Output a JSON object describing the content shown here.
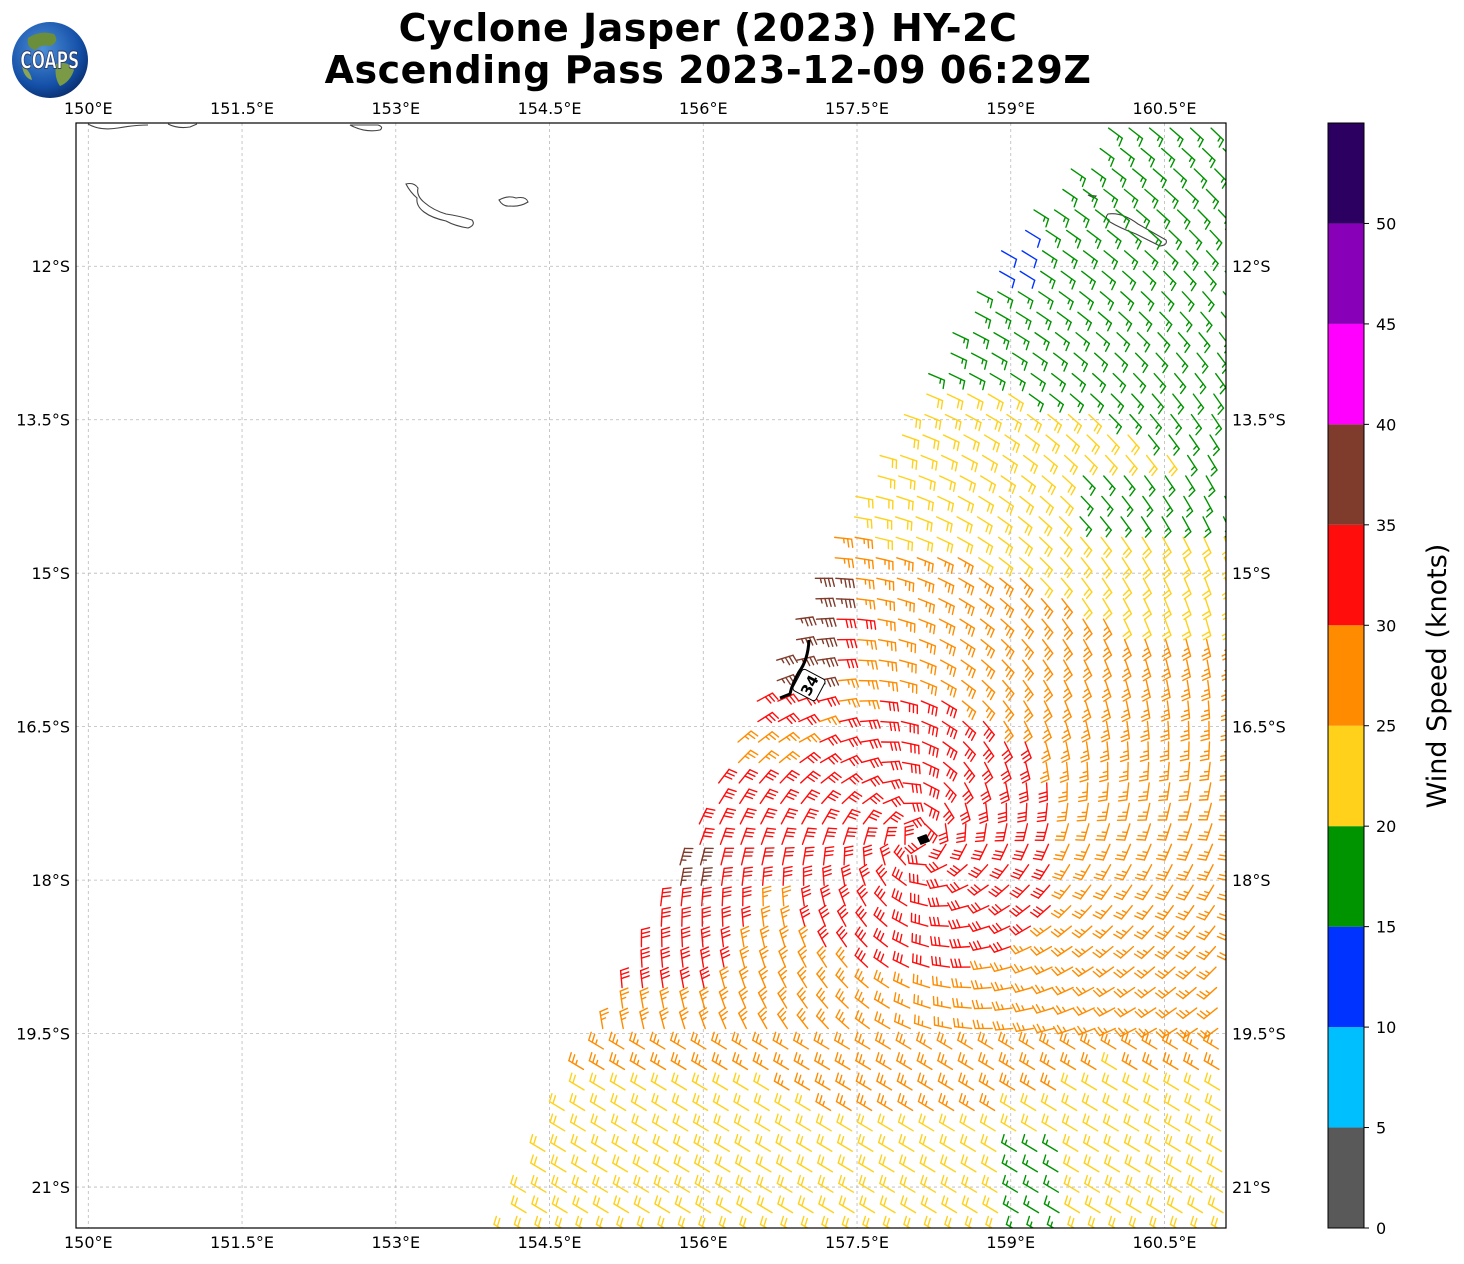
{
  "title": {
    "line1": "Cyclone Jasper (2023) HY-2C",
    "line2": "Ascending Pass 2023-12-09 06:29Z"
  },
  "logo": {
    "text": "COAPS",
    "icon": "globe-logo-icon"
  },
  "axes": {
    "x_ticks": [
      "150°E",
      "151.5°E",
      "153°E",
      "154.5°E",
      "156°E",
      "157.5°E",
      "159°E",
      "160.5°E"
    ],
    "x_values": [
      150,
      151.5,
      153,
      154.5,
      156,
      157.5,
      159,
      160.5
    ],
    "y_ticks": [
      "12°S",
      "13.5°S",
      "15°S",
      "16.5°S",
      "18°S",
      "19.5°S",
      "21°S"
    ],
    "y_values": [
      -12,
      -13.5,
      -15,
      -16.5,
      -18,
      -19.5,
      -21
    ],
    "lon_range": [
      149.88,
      161.1
    ],
    "lat_range": [
      -21.4,
      -10.6
    ],
    "grid": true
  },
  "annotation": {
    "label": "34",
    "lon": 157.05,
    "lat": -16.08
  },
  "colorbar": {
    "label": "Wind Speed (knots)",
    "ticks": [
      "0",
      "5",
      "10",
      "15",
      "20",
      "25",
      "30",
      "35",
      "40",
      "45",
      "50"
    ],
    "bins": [
      {
        "min": 0,
        "max": 5,
        "color": "#595959"
      },
      {
        "min": 5,
        "max": 10,
        "color": "#00bfff"
      },
      {
        "min": 10,
        "max": 15,
        "color": "#0033ff"
      },
      {
        "min": 15,
        "max": 20,
        "color": "#009400"
      },
      {
        "min": 20,
        "max": 25,
        "color": "#ffd11a"
      },
      {
        "min": 25,
        "max": 30,
        "color": "#ff8c00"
      },
      {
        "min": 30,
        "max": 35,
        "color": "#ff0d0d"
      },
      {
        "min": 35,
        "max": 40,
        "color": "#7f3b2b"
      },
      {
        "min": 40,
        "max": 45,
        "color": "#ff00ff"
      },
      {
        "min": 45,
        "max": 50,
        "color": "#8800b8"
      },
      {
        "min": 50,
        "max": 55,
        "color": "#2b0060"
      }
    ]
  },
  "chart_data": {
    "type": "map-wind-barbs",
    "units": "knots",
    "swath_edge": [
      [
        154.1,
        -21.4
      ],
      [
        157.4,
        -14.4
      ],
      [
        159.0,
        -11.7
      ],
      [
        160.0,
        -10.6
      ]
    ],
    "center": {
      "lon": 158.1,
      "lat": -17.6
    },
    "regions": [
      {
        "speed_kt": 32,
        "description": "core band around center"
      },
      {
        "speed_kt": 27,
        "description": "surrounding ring"
      },
      {
        "speed_kt": 22,
        "description": "outer southern and eastern field"
      },
      {
        "speed_kt": 17,
        "description": "northern band"
      },
      {
        "speed_kt": 12,
        "description": "far north-west edge"
      },
      {
        "speed_kt": 37,
        "description": "western edge near 157°E 15.5°S and 155.9°E 18°S"
      }
    ]
  }
}
